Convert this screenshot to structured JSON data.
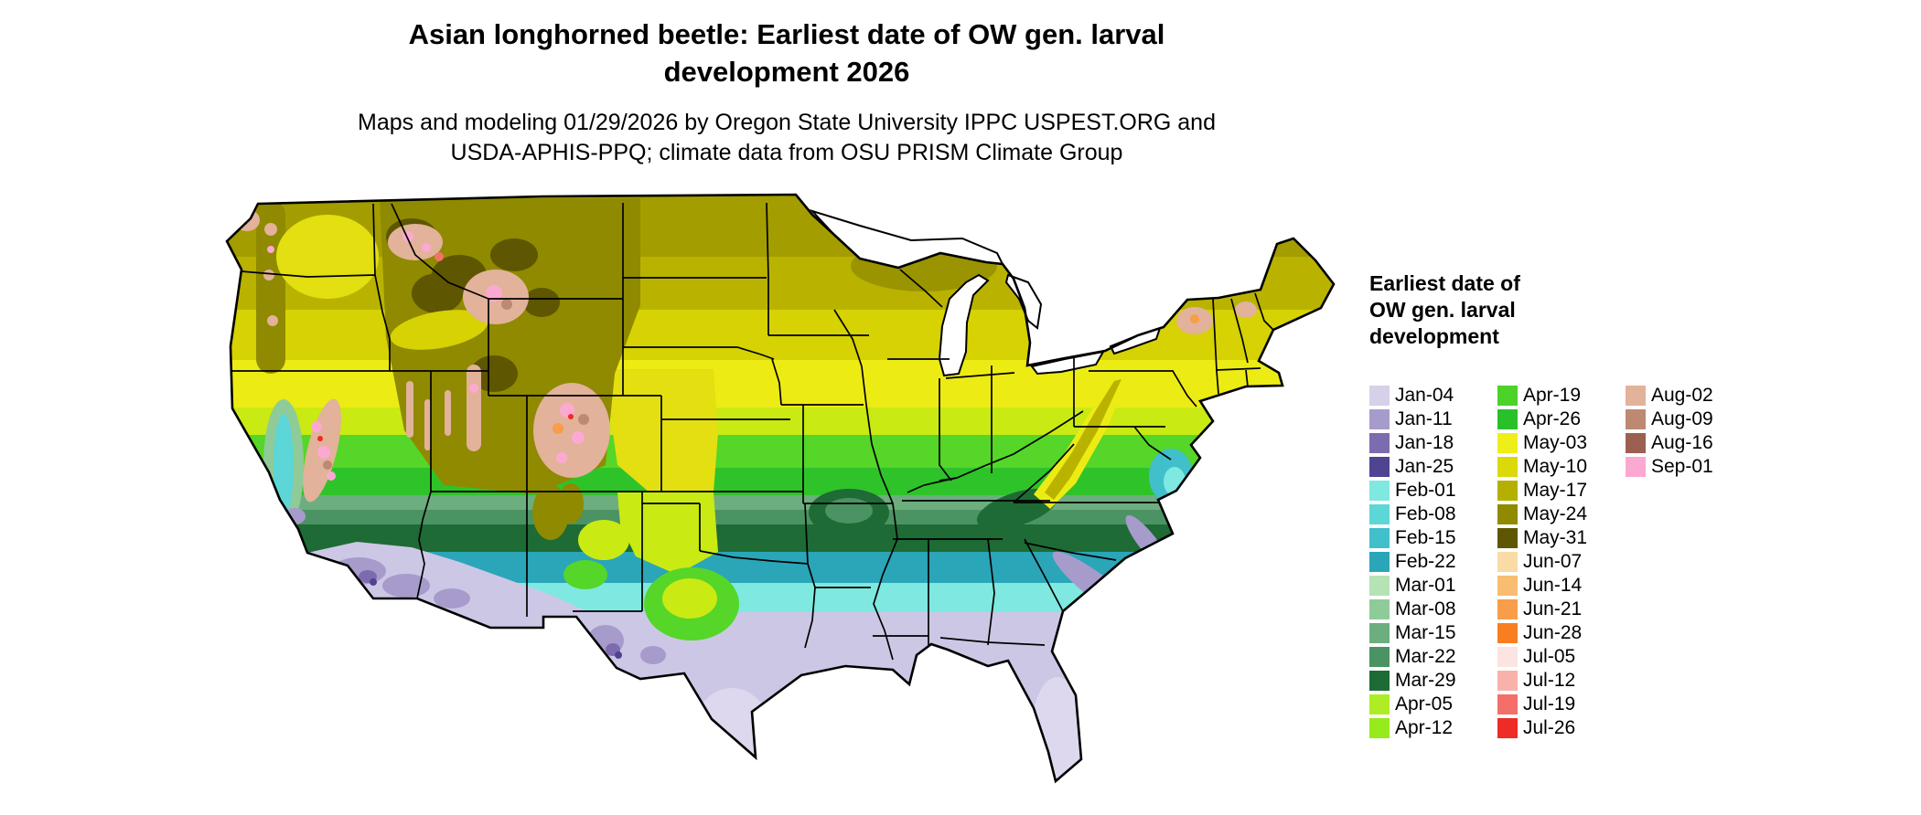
{
  "header": {
    "title": "Asian longhorned beetle: Earliest date of OW gen. larval development 2026",
    "subtitle": "Maps and modeling 01/29/2026 by Oregon State University IPPC USPEST.ORG and USDA-APHIS-PPQ; climate data from OSU PRISM Climate Group"
  },
  "legend": {
    "title": "Earliest date of OW gen. larval development",
    "columns": [
      {
        "items": [
          {
            "label": "Jan-04",
            "color": "#d6d0e8"
          },
          {
            "label": "Jan-11",
            "color": "#a79bcc"
          },
          {
            "label": "Jan-18",
            "color": "#7d6bb0"
          },
          {
            "label": "Jan-25",
            "color": "#4f4490"
          },
          {
            "label": "Feb-01",
            "color": "#7fe8e0"
          },
          {
            "label": "Feb-08",
            "color": "#5cd6d6"
          },
          {
            "label": "Feb-15",
            "color": "#41bfca"
          },
          {
            "label": "Feb-22",
            "color": "#2aa6b8"
          },
          {
            "label": "Mar-01",
            "color": "#b5e3b5"
          },
          {
            "label": "Mar-08",
            "color": "#8fcb98"
          },
          {
            "label": "Mar-15",
            "color": "#6cae7e"
          },
          {
            "label": "Mar-22",
            "color": "#4b9363"
          },
          {
            "label": "Mar-29",
            "color": "#1e6b35"
          },
          {
            "label": "Apr-05",
            "color": "#aeed24"
          },
          {
            "label": "Apr-12",
            "color": "#97ea1b"
          }
        ]
      },
      {
        "items": [
          {
            "label": "Apr-19",
            "color": "#4cd228"
          },
          {
            "label": "Apr-26",
            "color": "#29c129"
          },
          {
            "label": "May-03",
            "color": "#f0ee19"
          },
          {
            "label": "May-10",
            "color": "#dcd90a"
          },
          {
            "label": "May-17",
            "color": "#b5b000"
          },
          {
            "label": "May-24",
            "color": "#8f8a00"
          },
          {
            "label": "May-31",
            "color": "#5e5600"
          },
          {
            "label": "Jun-07",
            "color": "#f8dba5"
          },
          {
            "label": "Jun-14",
            "color": "#f8bd70"
          },
          {
            "label": "Jun-21",
            "color": "#f89d49"
          },
          {
            "label": "Jun-28",
            "color": "#f97e1f"
          },
          {
            "label": "Jul-05",
            "color": "#fbe4e2"
          },
          {
            "label": "Jul-12",
            "color": "#f8b2aa"
          },
          {
            "label": "Jul-19",
            "color": "#f46f68"
          },
          {
            "label": "Jul-26",
            "color": "#ee2b25"
          }
        ]
      },
      {
        "items": [
          {
            "label": "Aug-02",
            "color": "#e2b29a"
          },
          {
            "label": "Aug-09",
            "color": "#bd8973"
          },
          {
            "label": "Aug-16",
            "color": "#9c6051"
          },
          {
            "label": "Sep-01",
            "color": "#fca9d2"
          }
        ]
      }
    ]
  }
}
